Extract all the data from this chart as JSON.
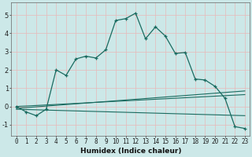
{
  "xlabel": "Humidex (Indice chaleur)",
  "bg_color": "#cce8e8",
  "line_color": "#1a6b60",
  "grid_color": "#e8b8b8",
  "xlim": [
    -0.5,
    23.5
  ],
  "ylim": [
    -1.6,
    5.7
  ],
  "xticks": [
    0,
    1,
    2,
    3,
    4,
    5,
    6,
    7,
    8,
    9,
    10,
    11,
    12,
    13,
    14,
    15,
    16,
    17,
    18,
    19,
    20,
    21,
    22,
    23
  ],
  "yticks": [
    -1,
    0,
    1,
    2,
    3,
    4,
    5
  ],
  "main_line_x": [
    0,
    1,
    2,
    3,
    4,
    5,
    6,
    7,
    8,
    9,
    10,
    11,
    12,
    13,
    14,
    15,
    16,
    17,
    18,
    19,
    20,
    21,
    22,
    23
  ],
  "main_line_y": [
    0.0,
    -0.3,
    -0.5,
    -0.15,
    2.0,
    1.7,
    2.6,
    2.75,
    2.65,
    3.1,
    4.7,
    4.8,
    5.1,
    3.7,
    4.35,
    3.85,
    2.9,
    2.95,
    1.5,
    1.45,
    1.1,
    0.45,
    -1.1,
    -1.2
  ],
  "reg_lines": [
    {
      "x": [
        0,
        23
      ],
      "y": [
        0.0,
        0.65
      ]
    },
    {
      "x": [
        0,
        23
      ],
      "y": [
        -0.1,
        0.85
      ]
    },
    {
      "x": [
        0,
        23
      ],
      "y": [
        -0.15,
        -0.5
      ]
    }
  ],
  "xlabel_fontsize": 6.5,
  "tick_fontsize": 5.5,
  "ylabel_fontsize": 6
}
